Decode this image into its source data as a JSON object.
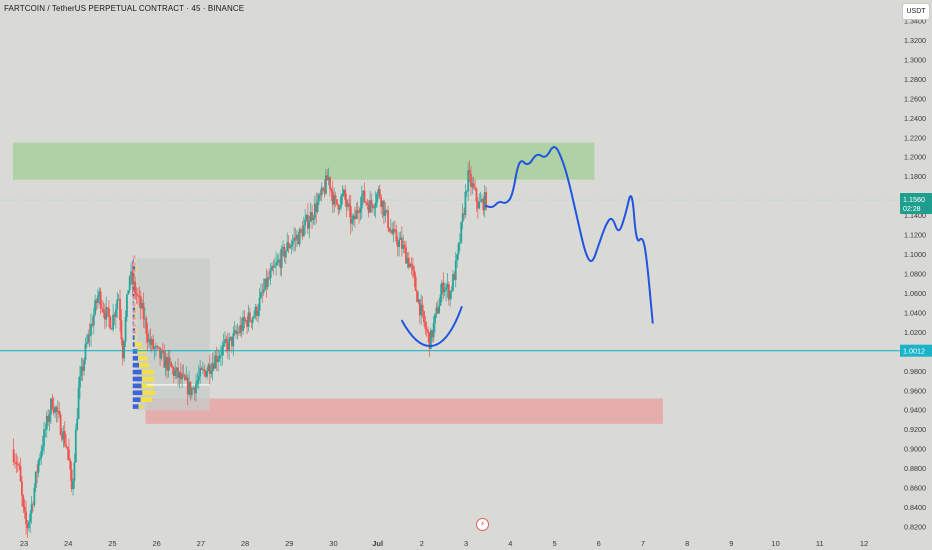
{
  "header": {
    "title": "FARTCOIN / TetherUS PERPETUAL CONTRACT · 45 · BINANCE",
    "currency_badge": "USDT"
  },
  "icons": {
    "replay": "lightning-icon"
  },
  "colors": {
    "background": "#d9d9d6",
    "candle_up": "#26a69a",
    "candle_down": "#ef5350",
    "resistance_zone": "#a9cfa0",
    "support_zone": "#e6a8a8",
    "projection_line": "#1f55e0",
    "horizontal_line": "#1bb3c7",
    "price_label": "#1e9e8e"
  },
  "chart_data": {
    "type": "candlestick",
    "title": "FARTCOIN / TetherUS PERPETUAL CONTRACT · 45 · BINANCE",
    "ylim": [
      0.81,
      1.35
    ],
    "y_ticks": [
      "1.3400",
      "1.3200",
      "1.3000",
      "1.2800",
      "1.2600",
      "1.2400",
      "1.2200",
      "1.2000",
      "1.1800",
      "1.1600",
      "1.1400",
      "1.1200",
      "1.1000",
      "1.0800",
      "1.0600",
      "1.0400",
      "1.0200",
      "1.0000",
      "0.9800",
      "0.9600",
      "0.9400",
      "0.9200",
      "0.9000",
      "0.8800",
      "0.8600",
      "0.8400",
      "0.8200"
    ],
    "x_ticks": [
      "23",
      "24",
      "25",
      "26",
      "27",
      "28",
      "29",
      "30",
      "Jul",
      "2",
      "3",
      "4",
      "5",
      "6",
      "7",
      "8",
      "9",
      "10",
      "11",
      "12"
    ],
    "x_tick_days": [
      23,
      24,
      25,
      26,
      27,
      28,
      29,
      30,
      31,
      32,
      33,
      34,
      35,
      36,
      37,
      38,
      39,
      40,
      41,
      42
    ],
    "x_range_days": [
      22.75,
      42.3
    ],
    "current_price": {
      "value": 1.156,
      "label": "1.1560",
      "countdown": "02:28"
    },
    "horizontal_line": {
      "value": 1.0012,
      "label": "1.0012"
    },
    "zones": [
      {
        "name": "resistance",
        "from_day": 22.75,
        "to_day": 35.9,
        "low": 1.177,
        "high": 1.215
      },
      {
        "name": "support",
        "from_day": 25.75,
        "to_day": 37.45,
        "low": 0.926,
        "high": 0.952
      }
    ],
    "price_path": [
      [
        22.75,
        0.9
      ],
      [
        22.9,
        0.88
      ],
      [
        23.0,
        0.835
      ],
      [
        23.08,
        0.818
      ],
      [
        23.2,
        0.845
      ],
      [
        23.35,
        0.89
      ],
      [
        23.5,
        0.92
      ],
      [
        23.65,
        0.95
      ],
      [
        23.8,
        0.93
      ],
      [
        24.0,
        0.9
      ],
      [
        24.1,
        0.855
      ],
      [
        24.25,
        0.96
      ],
      [
        24.4,
        1.0
      ],
      [
        24.55,
        1.03
      ],
      [
        24.7,
        1.06
      ],
      [
        24.85,
        1.04
      ],
      [
        25.0,
        1.03
      ],
      [
        25.15,
        1.06
      ],
      [
        25.25,
        1.0
      ],
      [
        25.4,
        1.08
      ],
      [
        25.55,
        1.06
      ],
      [
        25.7,
        1.04
      ],
      [
        25.85,
        1.01
      ],
      [
        26.0,
        1.0
      ],
      [
        26.2,
        0.99
      ],
      [
        26.4,
        0.98
      ],
      [
        26.6,
        0.97
      ],
      [
        26.8,
        0.96
      ],
      [
        27.0,
        0.975
      ],
      [
        27.2,
        0.985
      ],
      [
        27.45,
        1.0
      ],
      [
        27.7,
        1.01
      ],
      [
        28.0,
        1.03
      ],
      [
        28.25,
        1.04
      ],
      [
        28.5,
        1.07
      ],
      [
        28.75,
        1.09
      ],
      [
        29.0,
        1.11
      ],
      [
        29.25,
        1.12
      ],
      [
        29.5,
        1.14
      ],
      [
        29.75,
        1.16
      ],
      [
        29.9,
        1.18
      ],
      [
        30.05,
        1.15
      ],
      [
        30.25,
        1.16
      ],
      [
        30.45,
        1.13
      ],
      [
        30.65,
        1.16
      ],
      [
        30.85,
        1.15
      ],
      [
        31.05,
        1.165
      ],
      [
        31.2,
        1.14
      ],
      [
        31.35,
        1.12
      ],
      [
        31.55,
        1.11
      ],
      [
        31.75,
        1.09
      ],
      [
        31.9,
        1.06
      ],
      [
        32.05,
        1.03
      ],
      [
        32.2,
        1.01
      ],
      [
        32.35,
        1.04
      ],
      [
        32.5,
        1.07
      ],
      [
        32.65,
        1.06
      ],
      [
        32.8,
        1.09
      ],
      [
        32.95,
        1.14
      ],
      [
        33.05,
        1.18
      ],
      [
        33.15,
        1.17
      ],
      [
        33.3,
        1.15
      ],
      [
        33.45,
        1.156
      ]
    ],
    "projection_path": [
      [
        33.45,
        1.15
      ],
      [
        33.6,
        1.148
      ],
      [
        33.75,
        1.155
      ],
      [
        33.9,
        1.152
      ],
      [
        34.05,
        1.16
      ],
      [
        34.2,
        1.2
      ],
      [
        34.4,
        1.19
      ],
      [
        34.6,
        1.205
      ],
      [
        34.8,
        1.198
      ],
      [
        35.0,
        1.215
      ],
      [
        35.2,
        1.195
      ],
      [
        35.35,
        1.17
      ],
      [
        35.5,
        1.14
      ],
      [
        35.7,
        1.1
      ],
      [
        35.85,
        1.09
      ],
      [
        36.0,
        1.11
      ],
      [
        36.15,
        1.13
      ],
      [
        36.3,
        1.14
      ],
      [
        36.45,
        1.12
      ],
      [
        36.6,
        1.14
      ],
      [
        36.75,
        1.17
      ],
      [
        36.85,
        1.11
      ],
      [
        37.0,
        1.12
      ],
      [
        37.1,
        1.09
      ],
      [
        37.22,
        1.03
      ]
    ],
    "cup_curve": [
      [
        31.55,
        1.032
      ],
      [
        32.0,
        1.003
      ],
      [
        32.5,
        1.004
      ],
      [
        32.9,
        1.046
      ]
    ],
    "volume_profile": {
      "from_day": 25.55,
      "to_day": 27.2,
      "low": 0.94,
      "high": 1.096,
      "poc": 0.966
    }
  }
}
